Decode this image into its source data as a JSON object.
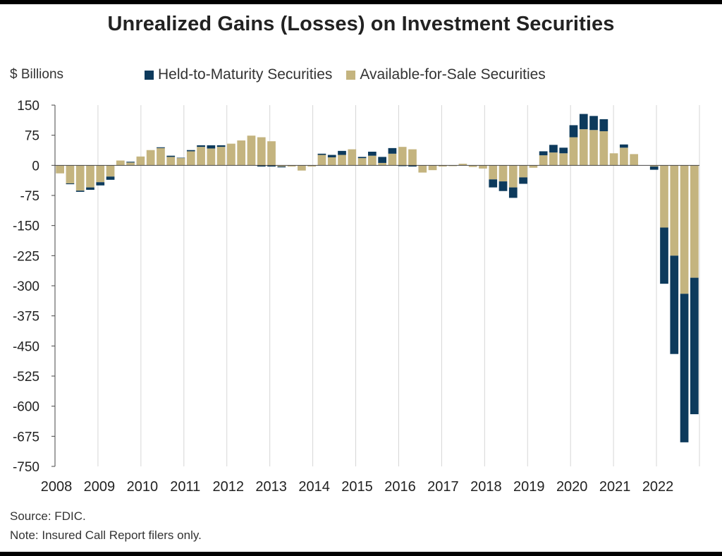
{
  "chart_data": {
    "type": "bar",
    "stacked": true,
    "title": "Unrealized Gains (Losses) on Investment Securities",
    "ylabel": "$ Billions",
    "ylim": [
      -750,
      150
    ],
    "yticks": [
      150,
      75,
      0,
      -75,
      -150,
      -225,
      -300,
      -375,
      -450,
      -525,
      -600,
      -675,
      -750
    ],
    "year_labels": [
      "2008",
      "2009",
      "2010",
      "2011",
      "2012",
      "2013",
      "2014",
      "2015",
      "2016",
      "2017",
      "2018",
      "2019",
      "2020",
      "2021",
      "2022"
    ],
    "grid": "vertical lines at year boundaries",
    "legend": "top",
    "series": [
      {
        "name": "Held-to-Maturity Securities",
        "color": "#0d3a5c",
        "values": [
          0,
          -2,
          -3,
          -6,
          -8,
          -8,
          0,
          2,
          0,
          0,
          2,
          3,
          1,
          3,
          4,
          8,
          4,
          0,
          0,
          0,
          -3,
          -3,
          -2,
          0,
          0,
          0,
          3,
          6,
          10,
          0,
          3,
          10,
          15,
          14,
          -2,
          -3,
          0,
          0,
          0,
          0,
          0,
          0,
          0,
          -20,
          -24,
          -26,
          -16,
          0,
          10,
          19,
          14,
          30,
          38,
          35,
          30,
          0,
          8,
          0,
          0,
          -8,
          -140,
          -245,
          -370,
          -340
        ]
      },
      {
        "name": "Available-for-Sale Securities",
        "color": "#c4b47f",
        "values": [
          -20,
          -45,
          -63,
          -55,
          -42,
          -28,
          12,
          7,
          22,
          38,
          43,
          21,
          18,
          35,
          46,
          42,
          46,
          54,
          62,
          74,
          70,
          60,
          -3,
          -3,
          -13,
          -3,
          26,
          20,
          26,
          40,
          18,
          24,
          6,
          29,
          46,
          40,
          -18,
          -12,
          -3,
          -2,
          4,
          -4,
          -8,
          -35,
          -40,
          -55,
          -30,
          -6,
          25,
          32,
          30,
          70,
          90,
          88,
          85,
          30,
          44,
          28,
          0,
          -3,
          -155,
          -225,
          -320,
          -280
        ]
      }
    ],
    "notes": {
      "source": "Source: FDIC.",
      "note": "Note: Insured Call Report filers only."
    }
  }
}
